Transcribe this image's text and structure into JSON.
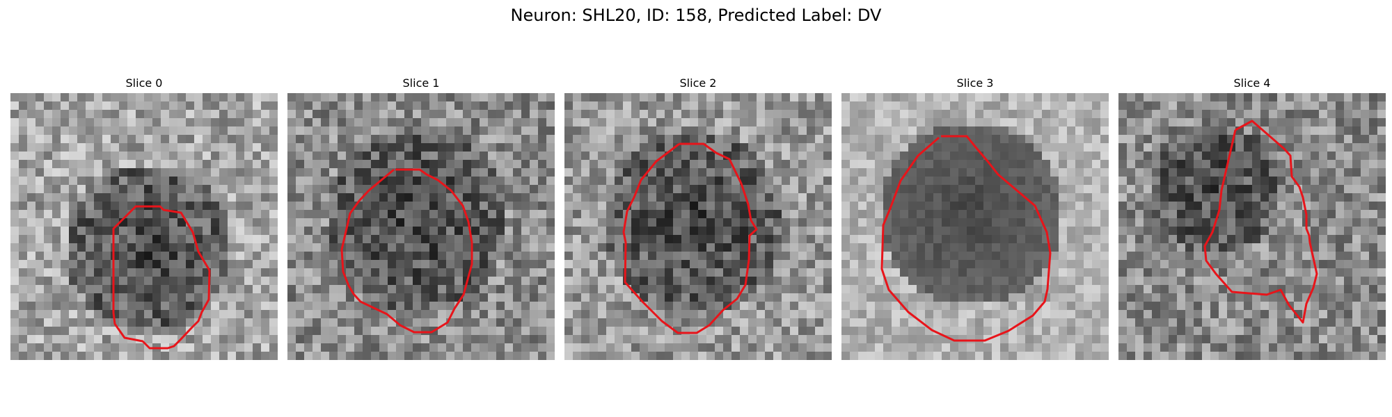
{
  "figure": {
    "title": "Neuron: SHL20, ID: 158, Predicted Label: DV"
  },
  "panels": [
    {
      "label": "Slice 0",
      "seed": 11,
      "bright_bias": 0.1,
      "dark_region": "center-low"
    },
    {
      "label": "Slice 1",
      "seed": 23,
      "bright_bias": 0.0,
      "dark_region": "center"
    },
    {
      "label": "Slice 2",
      "seed": 37,
      "bright_bias": 0.05,
      "dark_region": "center"
    },
    {
      "label": "Slice 3",
      "seed": 41,
      "bright_bias": 0.15,
      "dark_region": "center-smooth"
    },
    {
      "label": "Slice 4",
      "seed": 59,
      "bright_bias": 0.0,
      "dark_region": "upper-left"
    }
  ],
  "style": {
    "contour_color": "#e8141a",
    "image_colormap": "gray"
  }
}
